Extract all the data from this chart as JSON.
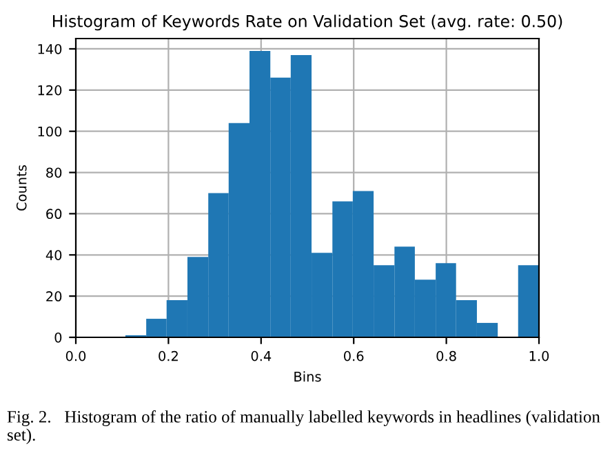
{
  "chart_data": {
    "type": "histogram",
    "title": "Histogram of Keywords Rate on Validation Set (avg. rate: 0.50)",
    "xlabel": "Bins",
    "ylabel": "Counts",
    "bins": [
      0.107,
      0.152,
      0.196,
      0.241,
      0.286,
      0.33,
      0.375,
      0.42,
      0.464,
      0.509,
      0.554,
      0.598,
      0.643,
      0.688,
      0.732,
      0.777,
      0.821,
      0.866,
      0.911,
      0.955,
      1.0
    ],
    "values": [
      1,
      9,
      18,
      39,
      70,
      104,
      139,
      126,
      137,
      41,
      66,
      71,
      35,
      44,
      28,
      36,
      18,
      7,
      0,
      35
    ],
    "color": "#1f77b4",
    "xlim": [
      0.0,
      1.0
    ],
    "ylim": [
      0,
      145
    ],
    "xticks": [
      {
        "value": 0,
        "label": "0.0"
      },
      0.2,
      0.4,
      0.6,
      0.8,
      {
        "value": 1,
        "label": "1.0"
      }
    ],
    "yticks": [
      0,
      20,
      40,
      60,
      80,
      100,
      120,
      140
    ],
    "grid": true,
    "annotations": [
      "Fig. 2.   Histogram of the ratio of manually labelled keywords in headlines (validation set)."
    ]
  }
}
